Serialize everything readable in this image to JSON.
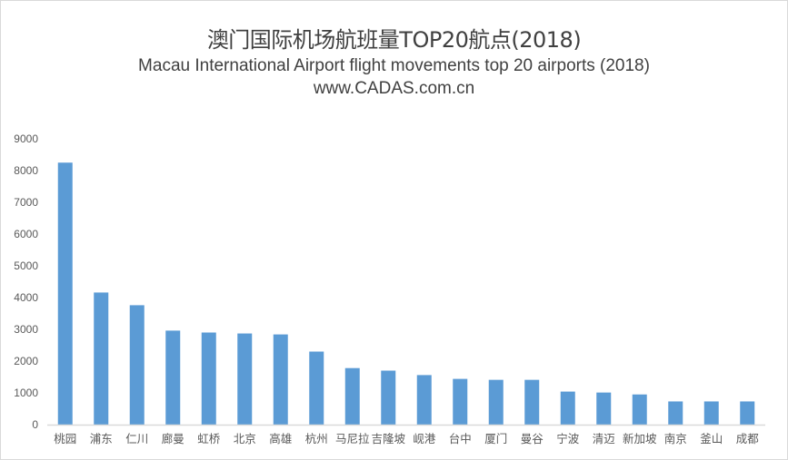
{
  "chart_data": {
    "type": "bar",
    "title": "澳门国际机场航班量TOP20航点(2018)",
    "subtitle": "Macau International Airport  flight movements top 20 airports (2018)",
    "source": "www.CADAS.com.cn",
    "xlabel": "",
    "ylabel": "",
    "ylim": [
      0,
      9000
    ],
    "yticks": [
      0,
      1000,
      2000,
      3000,
      4000,
      5000,
      6000,
      7000,
      8000,
      9000
    ],
    "grid": false,
    "legend": "none",
    "bar_color": "#5b9bd5",
    "categories": [
      "桃园",
      "浦东",
      "仁川",
      "廊曼",
      "虹桥",
      "北京",
      "高雄",
      "杭州",
      "马尼拉",
      "吉隆坡",
      "岘港",
      "台中",
      "厦门",
      "曼谷",
      "宁波",
      "清迈",
      "新加坡",
      "南京",
      "釜山",
      "成都"
    ],
    "values": [
      8250,
      4160,
      3760,
      2960,
      2900,
      2870,
      2840,
      2300,
      1780,
      1700,
      1560,
      1440,
      1410,
      1410,
      1040,
      1010,
      950,
      730,
      730,
      730
    ]
  }
}
